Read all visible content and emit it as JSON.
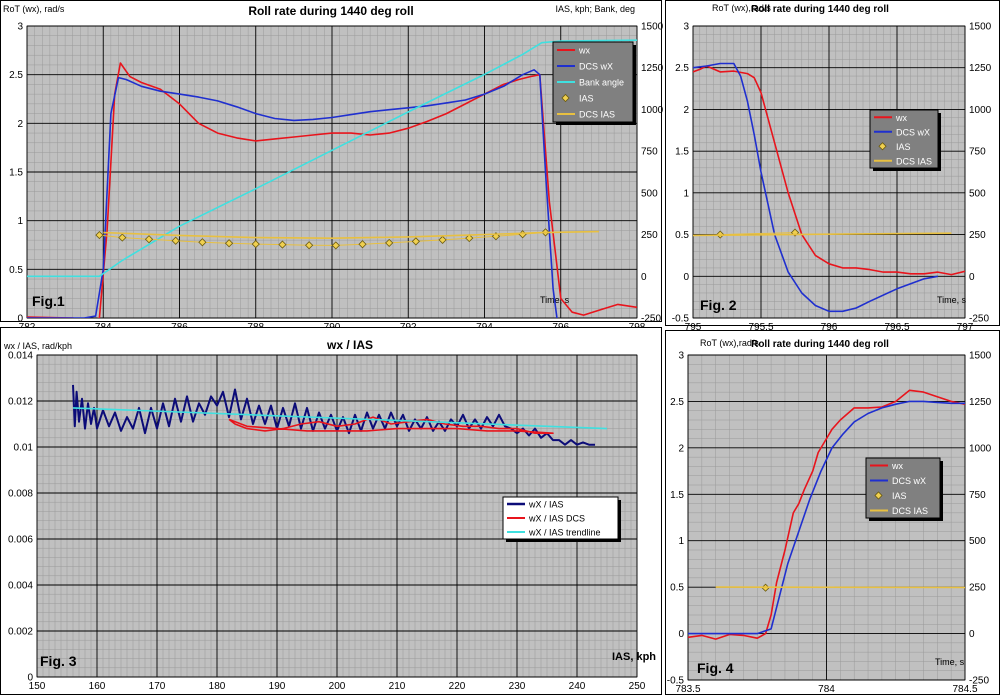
{
  "chart_data": [
    {
      "type": "line",
      "title": "Roll rate during 1440 deg roll",
      "ylabel": "RoT (wx), rad/s",
      "y2label": "IAS, kph;  Bank, deg",
      "xlabel": "Time, s",
      "figure_label": "Fig.1",
      "xlim": [
        782,
        798
      ],
      "ylim": [
        0,
        3
      ],
      "y2lim": [
        -250,
        1500
      ],
      "xticks": [
        782,
        784,
        786,
        788,
        790,
        792,
        794,
        796,
        798
      ],
      "xtick_labels": [
        "782",
        "784",
        "786",
        "788",
        "790",
        "792",
        "794",
        "796",
        "798"
      ],
      "yticks": [
        0,
        0.5,
        1,
        1.5,
        2,
        2.5,
        3
      ],
      "ytick_labels": [
        "0",
        "0.5",
        "1",
        "1.5",
        "2",
        "2.5",
        "3"
      ],
      "y2ticks": [
        -250,
        0,
        250,
        500,
        750,
        1000,
        1250,
        1500
      ],
      "y2tick_labels": [
        "-250",
        "0",
        "250",
        "500",
        "750",
        "1000",
        "1250",
        "1500"
      ],
      "grid": true,
      "legend_position": "top-right",
      "series": [
        {
          "name": "wx",
          "color": "#e8141c",
          "axis": "left",
          "style": "line",
          "x": [
            782,
            783.2,
            783.6,
            783.9,
            784.1,
            784.3,
            784.45,
            784.7,
            785,
            785.5,
            786,
            786.5,
            787,
            787.5,
            788,
            788.5,
            789,
            789.5,
            790,
            790.5,
            791,
            791.5,
            792,
            792.5,
            793,
            793.5,
            794,
            794.5,
            794.9,
            795.2,
            795.45,
            795.7,
            796,
            796.3,
            796.6,
            797,
            797.5,
            798
          ],
          "y": [
            0.01,
            0.0,
            -0.04,
            0.0,
            0.9,
            2.3,
            2.62,
            2.48,
            2.42,
            2.35,
            2.2,
            2.0,
            1.9,
            1.85,
            1.82,
            1.84,
            1.86,
            1.88,
            1.9,
            1.9,
            1.88,
            1.9,
            1.95,
            2.02,
            2.1,
            2.2,
            2.3,
            2.4,
            2.45,
            2.48,
            2.5,
            1.2,
            0.2,
            0.06,
            0.03,
            0.08,
            0.14,
            0.11
          ]
        },
        {
          "name": "DCS wX",
          "color": "#1f2fcf",
          "axis": "left",
          "style": "line",
          "x": [
            782,
            783.5,
            783.8,
            784,
            784.2,
            784.4,
            784.6,
            785,
            785.5,
            786,
            786.5,
            787,
            787.5,
            788,
            788.5,
            789,
            789.5,
            790,
            790.5,
            791,
            791.5,
            792,
            792.5,
            793,
            793.5,
            794,
            794.5,
            795,
            795.3,
            795.45,
            795.6,
            795.8,
            796.0,
            796.2,
            796.5,
            796.8,
            797
          ],
          "y": [
            0.0,
            0.0,
            0.02,
            0.5,
            2.1,
            2.47,
            2.45,
            2.38,
            2.33,
            2.3,
            2.27,
            2.23,
            2.17,
            2.1,
            2.05,
            2.03,
            2.04,
            2.06,
            2.09,
            2.12,
            2.14,
            2.16,
            2.18,
            2.21,
            2.24,
            2.3,
            2.38,
            2.5,
            2.55,
            2.5,
            1.5,
            0.3,
            -0.3,
            -0.4,
            -0.25,
            -0.1,
            -0.05
          ]
        },
        {
          "name": "Bank angle",
          "color": "#3fe0e0",
          "axis": "right",
          "style": "line",
          "x": [
            782,
            783.9,
            784.5,
            786,
            788,
            790,
            792,
            794,
            795,
            795.5,
            796,
            798
          ],
          "y": [
            0,
            0,
            95,
            300,
            525,
            755,
            985,
            1210,
            1330,
            1400,
            1410,
            1415
          ]
        },
        {
          "name": "IAS",
          "color": "#f0d050",
          "axis": "right",
          "style": "marker",
          "x": [
            783.9,
            784.5,
            785.2,
            785.9,
            786.6,
            787.3,
            788,
            788.7,
            789.4,
            790.1,
            790.8,
            791.5,
            792.2,
            792.9,
            793.6,
            794.3,
            795,
            795.6
          ],
          "y": [
            247,
            232,
            222,
            213,
            204,
            198,
            193,
            190,
            186,
            185,
            192,
            200,
            209,
            218,
            229,
            240,
            252,
            263
          ]
        },
        {
          "name": "DCS IAS",
          "color": "#e8c040",
          "axis": "right",
          "style": "line",
          "x": [
            784,
            786,
            788,
            790,
            792,
            794,
            795.5,
            797
          ],
          "y": [
            262,
            245,
            232,
            228,
            236,
            250,
            262,
            268
          ]
        }
      ]
    },
    {
      "type": "line",
      "title": "Roll rate during 1440 deg roll",
      "ylabel": "RoT (wx),rad/s",
      "xlabel": "Time, s",
      "figure_label": "Fig. 2",
      "xlim": [
        795,
        797
      ],
      "ylim": [
        -0.5,
        3
      ],
      "y2lim": [
        -250,
        1500
      ],
      "xticks": [
        795,
        795.5,
        796,
        796.5,
        797
      ],
      "xtick_labels": [
        "795",
        "795.5",
        "796",
        "796.5",
        "797"
      ],
      "yticks": [
        -0.5,
        0,
        0.5,
        1,
        1.5,
        2,
        2.5,
        3
      ],
      "ytick_labels": [
        "-0.5",
        "0",
        "0.5",
        "1",
        "1.5",
        "2",
        "2.5",
        "3"
      ],
      "y2ticks": [
        -250,
        0,
        250,
        500,
        750,
        1000,
        1250,
        1500
      ],
      "y2tick_labels": [
        "-250",
        "0",
        "250",
        "500",
        "750",
        "1000",
        "1250",
        "1500"
      ],
      "grid": true,
      "legend_position": "top-right",
      "series": [
        {
          "name": "wx",
          "color": "#e8141c",
          "axis": "left",
          "style": "line",
          "x": [
            795,
            795.05,
            795.1,
            795.2,
            795.3,
            795.4,
            795.45,
            795.5,
            795.6,
            795.7,
            795.8,
            795.9,
            796,
            796.1,
            796.2,
            796.3,
            796.4,
            796.5,
            796.6,
            796.7,
            796.8,
            796.9,
            797
          ],
          "y": [
            2.45,
            2.48,
            2.52,
            2.45,
            2.46,
            2.43,
            2.38,
            2.2,
            1.6,
            1.0,
            0.5,
            0.25,
            0.15,
            0.1,
            0.1,
            0.08,
            0.05,
            0.05,
            0.03,
            0.03,
            0.05,
            0.02,
            0.06
          ]
        },
        {
          "name": "DCS wX",
          "color": "#1f2fcf",
          "axis": "left",
          "style": "line",
          "x": [
            795,
            795.1,
            795.2,
            795.3,
            795.35,
            795.4,
            795.45,
            795.5,
            795.6,
            795.7,
            795.8,
            795.9,
            796,
            796.1,
            796.2,
            796.3,
            796.5,
            796.7,
            796.8
          ],
          "y": [
            2.5,
            2.52,
            2.55,
            2.55,
            2.4,
            2.1,
            1.7,
            1.25,
            0.5,
            0.05,
            -0.2,
            -0.35,
            -0.42,
            -0.42,
            -0.38,
            -0.3,
            -0.15,
            -0.03,
            0.0
          ]
        },
        {
          "name": "IAS",
          "color": "#f0d050",
          "axis": "right",
          "style": "marker",
          "x": [
            795.2,
            795.75
          ],
          "y": [
            250,
            262
          ]
        },
        {
          "name": "DCS IAS",
          "color": "#e8c040",
          "axis": "right",
          "style": "line",
          "x": [
            795,
            796,
            796.9
          ],
          "y": [
            245,
            252,
            258
          ]
        }
      ]
    },
    {
      "type": "line",
      "title": "wx / IAS",
      "ylabel": "wx / IAS, rad/kph",
      "xlabel": "IAS, kph",
      "figure_label": "Fig. 3",
      "xlim": [
        150,
        250
      ],
      "ylim": [
        0,
        0.014
      ],
      "xticks": [
        150,
        160,
        170,
        180,
        190,
        200,
        210,
        220,
        230,
        240,
        250
      ],
      "xtick_labels": [
        "150",
        "160",
        "170",
        "180",
        "190",
        "200",
        "210",
        "220",
        "230",
        "240",
        "250"
      ],
      "yticks": [
        0,
        0.002,
        0.004,
        0.006,
        0.008,
        0.01,
        0.012,
        0.014
      ],
      "ytick_labels": [
        "0",
        "0.002",
        "0.004",
        "0.006",
        "0.008",
        "0.01",
        "0.012",
        "0.014"
      ],
      "grid": true,
      "legend_position": "center-right",
      "series": [
        {
          "name": "wX / IAS",
          "color": "#0c0c78",
          "axis": "left",
          "style": "line",
          "x": [
            156,
            156.3,
            156.6,
            157,
            157.5,
            158,
            158.5,
            159,
            159.5,
            160,
            161,
            162,
            163,
            164,
            165,
            166,
            167,
            168,
            169,
            170,
            171,
            172,
            173,
            174,
            175,
            176,
            177,
            178,
            179,
            180,
            181,
            182,
            183,
            184,
            185,
            186,
            187,
            188,
            189,
            190,
            191,
            192,
            193,
            194,
            195,
            196,
            197,
            198,
            199,
            200,
            201,
            202,
            203,
            204,
            205,
            206,
            207,
            208,
            209,
            210,
            211,
            212,
            213,
            214,
            215,
            216,
            217,
            218,
            219,
            220,
            221,
            222,
            223,
            224,
            225,
            226,
            227,
            228,
            229,
            230,
            231,
            232,
            233,
            234,
            235,
            236,
            237,
            238,
            239,
            240,
            241,
            242,
            243
          ],
          "y": [
            0.0127,
            0.0109,
            0.0124,
            0.0111,
            0.0121,
            0.0108,
            0.0119,
            0.011,
            0.0117,
            0.0108,
            0.0116,
            0.0109,
            0.0115,
            0.0107,
            0.0113,
            0.0108,
            0.0117,
            0.0106,
            0.0117,
            0.0108,
            0.0119,
            0.0109,
            0.0121,
            0.0111,
            0.0122,
            0.0111,
            0.0119,
            0.0114,
            0.0122,
            0.0118,
            0.0124,
            0.0113,
            0.0125,
            0.0112,
            0.0121,
            0.011,
            0.0118,
            0.011,
            0.0118,
            0.0108,
            0.0117,
            0.0109,
            0.0119,
            0.0108,
            0.0117,
            0.0107,
            0.0115,
            0.0108,
            0.0114,
            0.0107,
            0.0113,
            0.0106,
            0.0114,
            0.0107,
            0.0115,
            0.0108,
            0.0114,
            0.0108,
            0.0115,
            0.0109,
            0.0114,
            0.0107,
            0.0112,
            0.0108,
            0.0113,
            0.0107,
            0.0111,
            0.0107,
            0.0112,
            0.0109,
            0.0114,
            0.0108,
            0.0112,
            0.0108,
            0.0113,
            0.0109,
            0.0114,
            0.0109,
            0.0108,
            0.0106,
            0.0108,
            0.0105,
            0.0108,
            0.0104,
            0.0106,
            0.0103,
            0.0103,
            0.0101,
            0.0103,
            0.0101,
            0.0102,
            0.0101,
            0.0101
          ]
        },
        {
          "name": "wX / IAS   DCS",
          "color": "#e8141c",
          "axis": "left",
          "style": "line",
          "x": [
            182,
            183,
            185,
            188,
            191,
            194,
            197,
            200,
            203,
            206,
            209,
            212,
            215,
            218,
            221,
            224,
            227,
            230,
            233,
            236,
            230,
            225,
            220,
            215,
            210,
            205,
            200,
            195,
            190,
            185,
            182
          ],
          "y": [
            0.0112,
            0.011,
            0.0108,
            0.0107,
            0.0108,
            0.011,
            0.0111,
            0.0109,
            0.011,
            0.0113,
            0.011,
            0.0111,
            0.0112,
            0.011,
            0.0109,
            0.0109,
            0.0108,
            0.0108,
            0.0106,
            0.0106,
            0.0107,
            0.0107,
            0.0108,
            0.0108,
            0.0108,
            0.0107,
            0.0107,
            0.0107,
            0.0108,
            0.0109,
            0.0112
          ]
        },
        {
          "name": "wX / IAS trendline",
          "color": "#3fe0e0",
          "axis": "left",
          "style": "line",
          "x": [
            156,
            245
          ],
          "y": [
            0.0117,
            0.0108
          ]
        }
      ]
    },
    {
      "type": "line",
      "title": "Roll rate during 1440 deg roll",
      "ylabel": "RoT (wx),rad/s",
      "xlabel": "Time, s",
      "figure_label": "Fig. 4",
      "xlim": [
        783.5,
        784.5
      ],
      "ylim": [
        -0.5,
        3
      ],
      "y2lim": [
        -250,
        1500
      ],
      "xticks": [
        783.5,
        784,
        784.5
      ],
      "xtick_labels": [
        "783.5",
        "784",
        "784.5"
      ],
      "yticks": [
        -0.5,
        0,
        0.5,
        1,
        1.5,
        2,
        2.5,
        3
      ],
      "ytick_labels": [
        "-0.5",
        "0",
        "0.5",
        "1",
        "1.5",
        "2",
        "2.5",
        "3"
      ],
      "y2ticks": [
        -250,
        0,
        250,
        500,
        750,
        1000,
        1250,
        1500
      ],
      "y2tick_labels": [
        "-250",
        "0",
        "250",
        "500",
        "750",
        "1000",
        "1250",
        "1500"
      ],
      "grid": true,
      "legend_position": "center-right",
      "series": [
        {
          "name": "wx",
          "color": "#e8141c",
          "axis": "left",
          "style": "line",
          "x": [
            783.5,
            783.55,
            783.6,
            783.65,
            783.7,
            783.75,
            783.78,
            783.8,
            783.82,
            783.85,
            783.88,
            783.9,
            783.92,
            783.95,
            783.97,
            784,
            784.02,
            784.05,
            784.1,
            784.15,
            784.2,
            784.25,
            784.3,
            784.35,
            784.4,
            784.45,
            784.5
          ],
          "y": [
            -0.04,
            -0.02,
            -0.06,
            -0.01,
            -0.02,
            -0.05,
            0.0,
            0.2,
            0.55,
            0.9,
            1.3,
            1.4,
            1.55,
            1.75,
            1.95,
            2.1,
            2.2,
            2.3,
            2.43,
            2.43,
            2.44,
            2.5,
            2.62,
            2.6,
            2.55,
            2.5,
            2.47
          ]
        },
        {
          "name": "DCS wX",
          "color": "#1f2fcf",
          "axis": "left",
          "style": "line",
          "x": [
            783.5,
            783.7,
            783.75,
            783.8,
            783.83,
            783.86,
            783.9,
            783.94,
            783.98,
            784.02,
            784.06,
            784.1,
            784.15,
            784.2,
            784.25,
            784.3,
            784.35,
            784.4,
            784.45,
            784.5
          ],
          "y": [
            0.0,
            0.0,
            0.0,
            0.05,
            0.4,
            0.75,
            1.1,
            1.45,
            1.75,
            2.0,
            2.15,
            2.28,
            2.37,
            2.43,
            2.47,
            2.5,
            2.5,
            2.49,
            2.48,
            2.48
          ]
        },
        {
          "name": "IAS",
          "color": "#f0d050",
          "axis": "right",
          "style": "marker",
          "x": [
            783.78
          ],
          "y": [
            247
          ]
        },
        {
          "name": "DCS IAS",
          "color": "#e8c040",
          "axis": "right",
          "style": "line",
          "x": [
            783.6,
            784.5
          ],
          "y": [
            250,
            248
          ]
        }
      ]
    }
  ]
}
